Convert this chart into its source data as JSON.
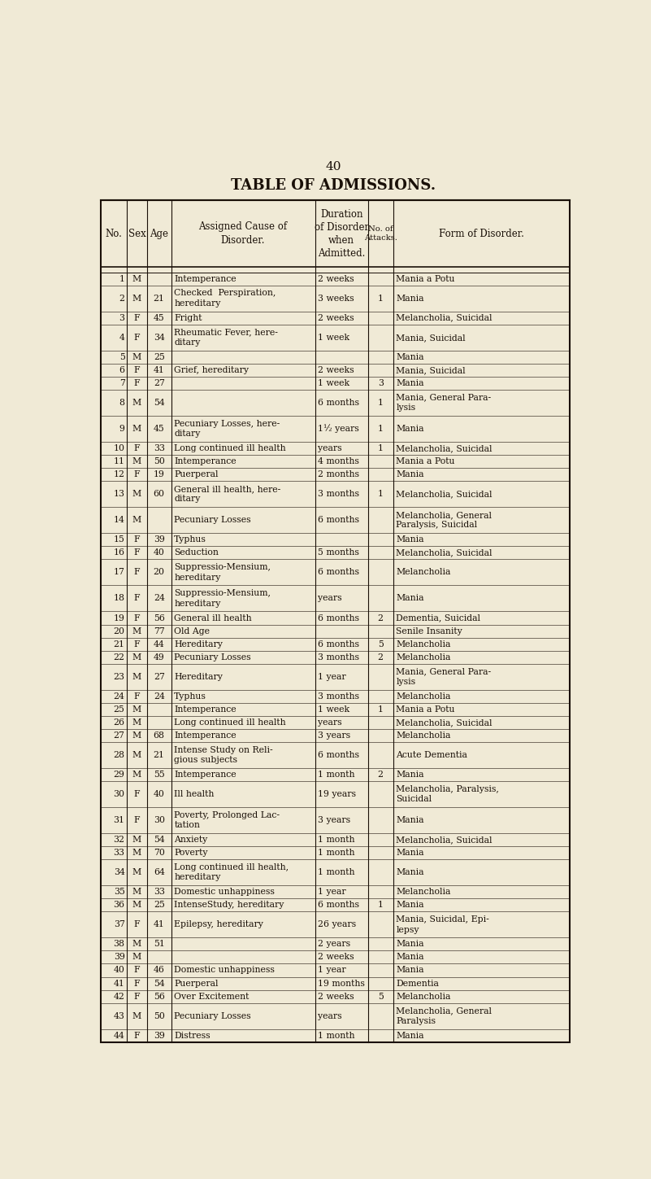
{
  "page_number": "40",
  "title": "TABLE OF ADMISSIONS.",
  "bg_color": "#f0ead6",
  "text_color": "#1a1008",
  "headers": [
    "No.",
    "Sex",
    "Age",
    "Assigned Cause of\nDisorder.",
    "Duration\nof Disorder\nwhen\nAdmitted.",
    "No. of\nAttacks.",
    "Form of Disorder."
  ],
  "rows": [
    [
      "1",
      "M",
      "",
      "Intemperance",
      "2 weeks",
      "",
      "Mania a Potu"
    ],
    [
      "2",
      "M",
      "21",
      "Checked  Perspiration,\nhereditary",
      "3 weeks",
      "1",
      "Mania"
    ],
    [
      "3",
      "F",
      "45",
      "Fright",
      "2 weeks",
      "",
      "Melancholia, Suicidal"
    ],
    [
      "4",
      "F",
      "34",
      "Rheumatic Fever, here-\nditary",
      "1 week",
      "",
      "Mania, Suicidal"
    ],
    [
      "5",
      "M",
      "25",
      "",
      "",
      "",
      "Mania"
    ],
    [
      "6",
      "F",
      "41",
      "Grief, hereditary",
      "2 weeks",
      "",
      "Mania, Suicidal"
    ],
    [
      "7",
      "F",
      "27",
      "",
      "1 week",
      "3",
      "Mania"
    ],
    [
      "8",
      "M",
      "54",
      "",
      "6 months",
      "1",
      "Mania, General Para-\nlysis"
    ],
    [
      "9",
      "M",
      "45",
      "Pecuniary Losses, here-\nditary",
      "1½ years",
      "1",
      "Mania"
    ],
    [
      "10",
      "F",
      "33",
      "Long continued ill health",
      "years",
      "1",
      "Melancholia, Suicidal"
    ],
    [
      "11",
      "M",
      "50",
      "Intemperance",
      "4 months",
      "",
      "Mania a Potu"
    ],
    [
      "12",
      "F",
      "19",
      "Puerperal",
      "2 months",
      "",
      "Mania"
    ],
    [
      "13",
      "M",
      "60",
      "General ill health, here-\nditary",
      "3 months",
      "1",
      "Melancholia, Suicidal"
    ],
    [
      "14",
      "M",
      "",
      "Pecuniary Losses",
      "6 months",
      "",
      "Melancholia, General\nParalysis, Suicidal"
    ],
    [
      "15",
      "F",
      "39",
      "Typhus",
      "",
      "",
      "Mania"
    ],
    [
      "16",
      "F",
      "40",
      "Seduction",
      "5 months",
      "",
      "Melancholia, Suicidal"
    ],
    [
      "17",
      "F",
      "20",
      "Suppressio-Mensium,\nhereditary",
      "6 months",
      "",
      "Melancholia"
    ],
    [
      "18",
      "F",
      "24",
      "Suppressio-Mensium,\nhereditary",
      "years",
      "",
      "Mania"
    ],
    [
      "19",
      "F",
      "56",
      "General ill health",
      "6 months",
      "2",
      "Dementia, Suicidal"
    ],
    [
      "20",
      "M",
      "77",
      "Old Age",
      "",
      "",
      "Senile Insanity"
    ],
    [
      "21",
      "F",
      "44",
      "Hereditary",
      "6 months",
      "5",
      "Melancholia"
    ],
    [
      "22",
      "M",
      "49",
      "Pecuniary Losses",
      "3 months",
      "2",
      "Melancholia"
    ],
    [
      "23",
      "M",
      "27",
      "Hereditary",
      "1 year",
      "",
      "Mania, General Para-\nlysis"
    ],
    [
      "24",
      "F",
      "24",
      "Typhus",
      "3 months",
      "",
      "Melancholia"
    ],
    [
      "25",
      "M",
      "",
      "Intemperance",
      "1 week",
      "1",
      "Mania a Potu"
    ],
    [
      "26",
      "M",
      "",
      "Long continued ill health",
      "years",
      "",
      "Melancholia, Suicidal"
    ],
    [
      "27",
      "M",
      "68",
      "Intemperance",
      "3 years",
      "",
      "Melancholia"
    ],
    [
      "28",
      "M",
      "21",
      "Intense Study on Reli-\ngious subjects",
      "6 months",
      "",
      "Acute Dementia"
    ],
    [
      "29",
      "M",
      "55",
      "Intemperance",
      "1 month",
      "2",
      "Mania"
    ],
    [
      "30",
      "F",
      "40",
      "Ill health",
      "19 years",
      "",
      "Melancholia, Paralysis,\nSuicidal"
    ],
    [
      "31",
      "F",
      "30",
      "Poverty, Prolonged Lac-\ntation",
      "3 years",
      "",
      "Mania"
    ],
    [
      "32",
      "M",
      "54",
      "Anxiety",
      "1 month",
      "",
      "Melancholia, Suicidal"
    ],
    [
      "33",
      "M",
      "70",
      "Poverty",
      "1 month",
      "",
      "Mania"
    ],
    [
      "34",
      "M",
      "64",
      "Long continued ill health,\nhereditary",
      "1 month",
      "",
      "Mania"
    ],
    [
      "35",
      "M",
      "33",
      "Domestic unhappiness",
      "1 year",
      "",
      "Melancholia"
    ],
    [
      "36",
      "M",
      "25",
      "IntenseStudy, hereditary",
      "6 months",
      "1",
      "Mania"
    ],
    [
      "37",
      "F",
      "41",
      "Epilepsy, hereditary",
      "26 years",
      "",
      "Mania, Suicidal, Epi-\nlepsy"
    ],
    [
      "38",
      "M",
      "51",
      "",
      "2 years",
      "",
      "Mania"
    ],
    [
      "39",
      "M",
      "",
      "",
      "2 weeks",
      "",
      "Mania"
    ],
    [
      "40",
      "F",
      "46",
      "Domestic unhappiness",
      "1 year",
      "",
      "Mania"
    ],
    [
      "41",
      "F",
      "54",
      "Puerperal",
      "19 months",
      "",
      "Dementia"
    ],
    [
      "42",
      "F",
      "56",
      "Over Excitement",
      "2 weeks",
      "5",
      "Melancholia"
    ],
    [
      "43",
      "M",
      "50",
      "Pecuniary Losses",
      "years",
      "",
      "Melancholia, General\nParalysis"
    ],
    [
      "44",
      "F",
      "39",
      "Distress",
      "1 month",
      "",
      "Mania"
    ]
  ]
}
